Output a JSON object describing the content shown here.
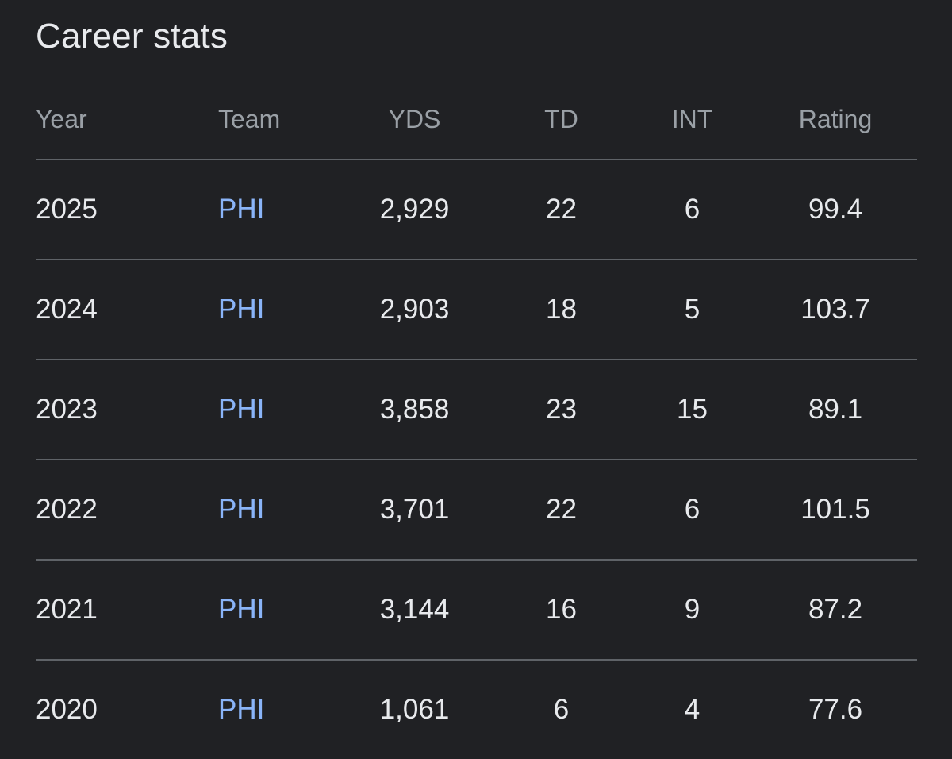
{
  "card": {
    "title": "Career stats"
  },
  "table": {
    "headers": {
      "year": "Year",
      "team": "Team",
      "yds": "YDS",
      "td": "TD",
      "int": "INT",
      "rating": "Rating"
    },
    "rows": [
      {
        "year": "2025",
        "team": "PHI",
        "yds": "2,929",
        "td": "22",
        "int": "6",
        "rating": "99.4"
      },
      {
        "year": "2024",
        "team": "PHI",
        "yds": "2,903",
        "td": "18",
        "int": "5",
        "rating": "103.7"
      },
      {
        "year": "2023",
        "team": "PHI",
        "yds": "3,858",
        "td": "23",
        "int": "15",
        "rating": "89.1"
      },
      {
        "year": "2022",
        "team": "PHI",
        "yds": "3,701",
        "td": "22",
        "int": "6",
        "rating": "101.5"
      },
      {
        "year": "2021",
        "team": "PHI",
        "yds": "3,144",
        "td": "16",
        "int": "9",
        "rating": "87.2"
      },
      {
        "year": "2020",
        "team": "PHI",
        "yds": "1,061",
        "td": "6",
        "int": "4",
        "rating": "77.6"
      }
    ]
  },
  "colors": {
    "background": "#202124",
    "text_primary": "#e8eaed",
    "text_secondary": "#9aa0a6",
    "link": "#8ab4f8",
    "divider": "#5f6368"
  }
}
